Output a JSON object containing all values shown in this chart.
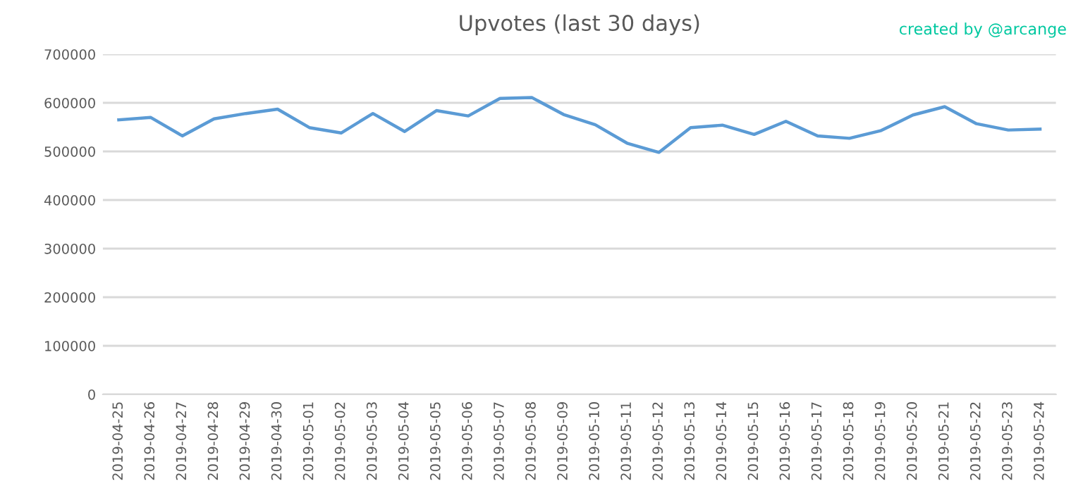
{
  "chart_data": {
    "type": "line",
    "title": "Upvotes (last 30 days)",
    "annotations": [
      "created by @arcange"
    ],
    "categories": [
      "2019-04-25",
      "2019-04-26",
      "2019-04-27",
      "2019-04-28",
      "2019-04-29",
      "2019-04-30",
      "2019-05-01",
      "2019-05-02",
      "2019-05-03",
      "2019-05-04",
      "2019-05-05",
      "2019-05-06",
      "2019-05-07",
      "2019-05-08",
      "2019-05-09",
      "2019-05-10",
      "2019-05-11",
      "2019-05-12",
      "2019-05-13",
      "2019-05-14",
      "2019-05-15",
      "2019-05-16",
      "2019-05-17",
      "2019-05-18",
      "2019-05-19",
      "2019-05-20",
      "2019-05-21",
      "2019-05-22",
      "2019-05-23",
      "2019-05-24"
    ],
    "series": [
      {
        "color": "#5b9bd5",
        "values": [
          565000,
          570000,
          532000,
          567000,
          578000,
          587000,
          549000,
          538000,
          578000,
          541000,
          584000,
          573000,
          609000,
          611000,
          576000,
          555000,
          517000,
          498000,
          549000,
          554000,
          535000,
          562000,
          532000,
          527000,
          543000,
          575000,
          592000,
          557000,
          544000,
          546000
        ]
      }
    ],
    "ylim": [
      0,
      700000
    ],
    "yticks": [
      0,
      100000,
      200000,
      300000,
      400000,
      500000,
      600000,
      700000
    ],
    "grid": "y",
    "marker": "none",
    "line_style": "solid"
  }
}
